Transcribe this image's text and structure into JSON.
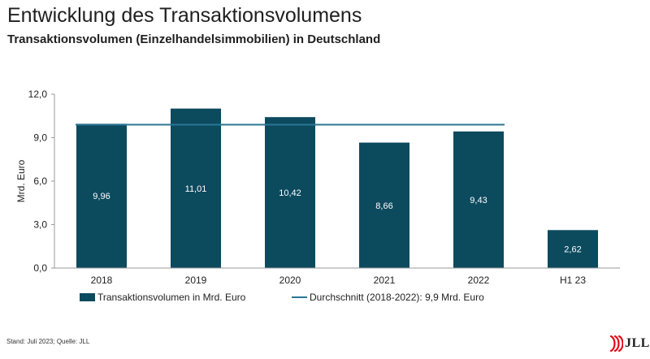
{
  "header": {
    "title": "Entwicklung des Transaktionsvolumens",
    "subtitle": "Transaktionsvolumen (Einzelhandelsimmobilien) in Deutschland"
  },
  "chart_data": {
    "type": "bar",
    "categories": [
      "2018",
      "2019",
      "2020",
      "2021",
      "2022",
      "H1 23"
    ],
    "series": [
      {
        "name": "Transaktionsvolumen in Mrd. Euro",
        "type": "bar",
        "values": [
          9.96,
          11.01,
          10.42,
          8.66,
          9.43,
          2.62
        ],
        "labels": [
          "9,96",
          "11,01",
          "10,42",
          "8,66",
          "9,43",
          "2,62"
        ]
      },
      {
        "name": "Durchschnitt (2018-2022): 9,9 Mrd. Euro",
        "type": "line",
        "value": 9.9,
        "span": [
          "2018",
          "2022"
        ]
      }
    ],
    "ylabel": "Mrd. Euro",
    "xlabel": "",
    "ylim": [
      0,
      12
    ],
    "yticks": [
      0,
      3,
      6,
      9,
      12
    ],
    "ytick_labels": [
      "0,0",
      "3,0",
      "6,0",
      "9,0",
      "12,0"
    ],
    "legend_position": "bottom",
    "colors": {
      "bar": "#0c4a5e",
      "line": "#2b7596",
      "axis": "#9a9a9a",
      "bar_label": "#ffffff"
    }
  },
  "footer": {
    "source": "Stand: Juli 2023; Quelle: JLL",
    "logo_text": "JLL",
    "logo_color": "#e30613"
  }
}
